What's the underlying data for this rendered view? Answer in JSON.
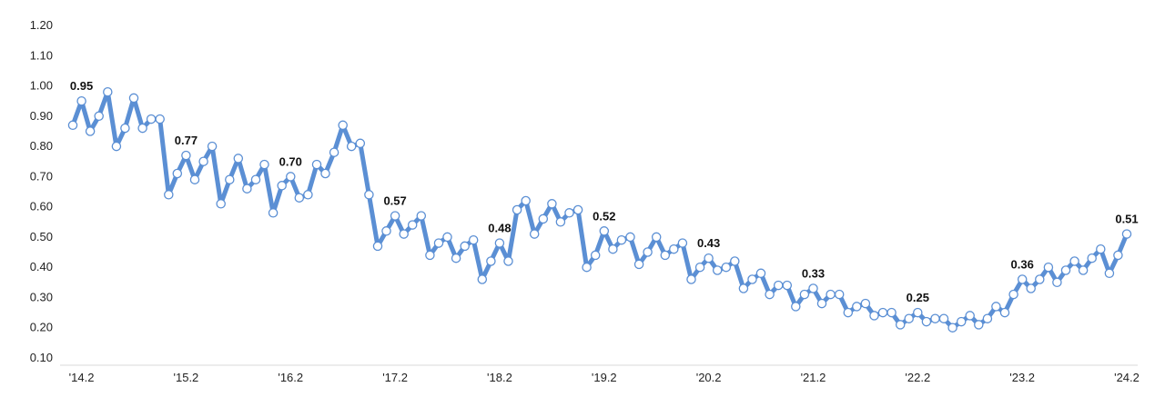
{
  "chart_data": {
    "type": "line",
    "title": "",
    "xlabel": "",
    "ylabel": "",
    "ylim": [
      0.1,
      1.2
    ],
    "yticks": [
      "1.20",
      "1.10",
      "1.00",
      "0.90",
      "0.80",
      "0.70",
      "0.60",
      "0.50",
      "0.40",
      "0.30",
      "0.20",
      "0.10"
    ],
    "xticks": [
      {
        "label": "'14.2",
        "index": 1
      },
      {
        "label": "'15.2",
        "index": 13
      },
      {
        "label": "'16.2",
        "index": 25
      },
      {
        "label": "'17.2",
        "index": 37
      },
      {
        "label": "'18.2",
        "index": 49
      },
      {
        "label": "'19.2",
        "index": 61
      },
      {
        "label": "'20.2",
        "index": 73
      },
      {
        "label": "'21.2",
        "index": 85
      },
      {
        "label": "'22.2",
        "index": 97
      },
      {
        "label": "'23.2",
        "index": 109
      },
      {
        "label": "'24.2",
        "index": 121
      }
    ],
    "grid": false,
    "legend": "none",
    "line_color": "#5b8fd4",
    "marker_fill": "#ffffff",
    "series": [
      {
        "values": [
          0.87,
          0.95,
          0.85,
          0.9,
          0.98,
          0.8,
          0.86,
          0.96,
          0.86,
          0.89,
          0.89,
          0.64,
          0.71,
          0.77,
          0.69,
          0.75,
          0.8,
          0.61,
          0.69,
          0.76,
          0.66,
          0.69,
          0.74,
          0.58,
          0.67,
          0.7,
          0.63,
          0.64,
          0.74,
          0.71,
          0.78,
          0.87,
          0.8,
          0.81,
          0.64,
          0.47,
          0.52,
          0.57,
          0.51,
          0.54,
          0.57,
          0.44,
          0.48,
          0.5,
          0.43,
          0.47,
          0.49,
          0.36,
          0.42,
          0.48,
          0.42,
          0.59,
          0.62,
          0.51,
          0.56,
          0.61,
          0.55,
          0.58,
          0.59,
          0.4,
          0.44,
          0.52,
          0.46,
          0.49,
          0.5,
          0.41,
          0.45,
          0.5,
          0.44,
          0.46,
          0.48,
          0.36,
          0.4,
          0.43,
          0.39,
          0.4,
          0.42,
          0.33,
          0.36,
          0.38,
          0.31,
          0.34,
          0.34,
          0.27,
          0.31,
          0.33,
          0.28,
          0.31,
          0.31,
          0.25,
          0.27,
          0.28,
          0.24,
          0.25,
          0.25,
          0.21,
          0.23,
          0.25,
          0.22,
          0.23,
          0.23,
          0.2,
          0.22,
          0.24,
          0.21,
          0.23,
          0.27,
          0.25,
          0.31,
          0.36,
          0.33,
          0.36,
          0.4,
          0.35,
          0.39,
          0.42,
          0.39,
          0.43,
          0.46,
          0.38,
          0.44,
          0.51
        ]
      }
    ],
    "annotations": [
      {
        "index": 1,
        "label": "0.95"
      },
      {
        "index": 13,
        "label": "0.77"
      },
      {
        "index": 25,
        "label": "0.70"
      },
      {
        "index": 37,
        "label": "0.57"
      },
      {
        "index": 49,
        "label": "0.48"
      },
      {
        "index": 61,
        "label": "0.52"
      },
      {
        "index": 73,
        "label": "0.43"
      },
      {
        "index": 85,
        "label": "0.33"
      },
      {
        "index": 97,
        "label": "0.25"
      },
      {
        "index": 109,
        "label": "0.36"
      },
      {
        "index": 121,
        "label": "0.51"
      }
    ]
  }
}
